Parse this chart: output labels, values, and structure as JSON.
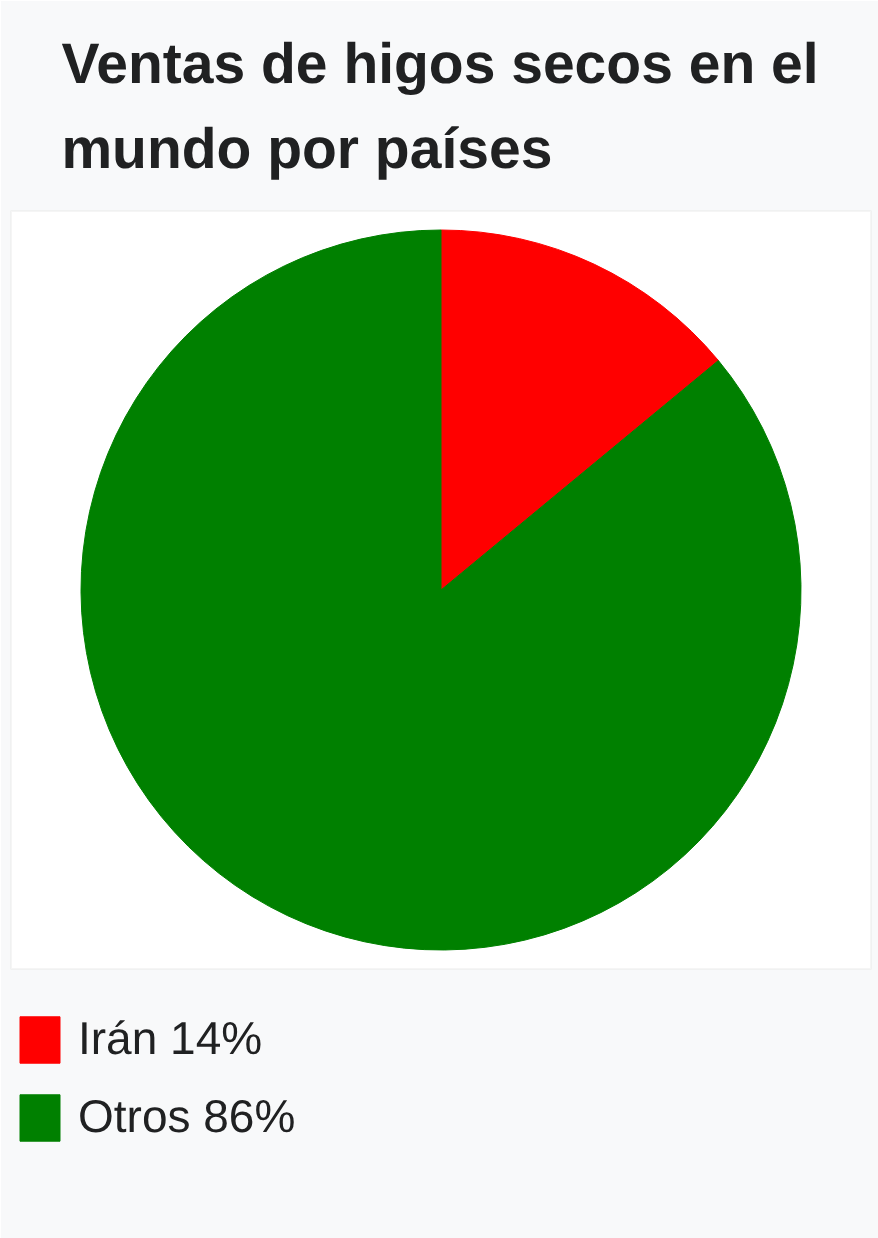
{
  "chart_data": {
    "type": "pie",
    "title": "Ventas de higos secos en el mundo por países",
    "categories": [
      "Irán 14%",
      "Otros 86%"
    ],
    "values": [
      14,
      86
    ],
    "colors": [
      "#ff0000",
      "#008000"
    ],
    "legend": "bottom left"
  }
}
